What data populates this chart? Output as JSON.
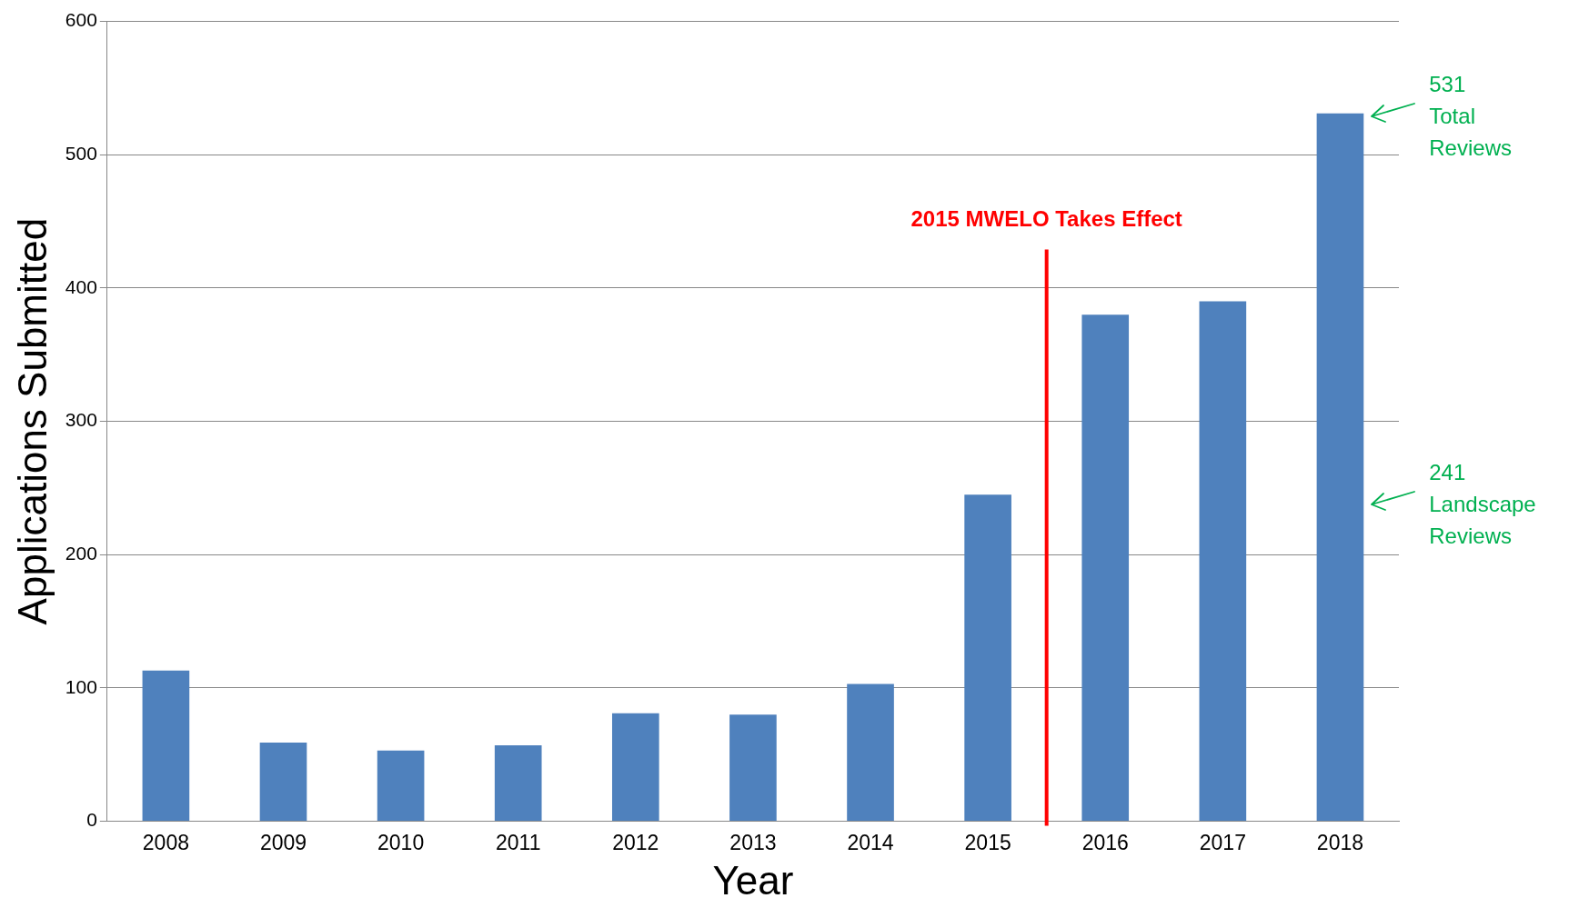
{
  "chart_data": {
    "type": "bar",
    "xlabel": "Year",
    "ylabel": "Applications Submitted",
    "categories": [
      "2008",
      "2009",
      "2010",
      "2011",
      "2012",
      "2013",
      "2014",
      "2015",
      "2016",
      "2017",
      "2018"
    ],
    "values": [
      113,
      59,
      53,
      57,
      81,
      80,
      103,
      245,
      380,
      390,
      531
    ],
    "color": "#4f81bd",
    "ylim": [
      0,
      600
    ],
    "yticks": [
      0,
      100,
      200,
      300,
      400,
      500,
      600
    ],
    "grid": "y",
    "annotations": [
      "2015 MWELO Takes Effect",
      "531 Total Reviews",
      "241 Landscape Reviews"
    ]
  }
}
